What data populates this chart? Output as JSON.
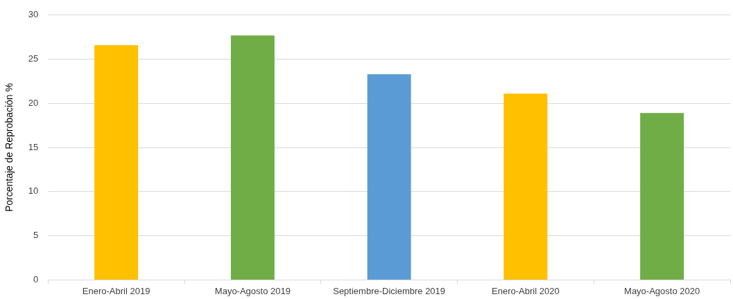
{
  "chart_data": {
    "type": "bar",
    "ylabel": "Porcentaje de Reprobación %",
    "categories": [
      "Enero-Abril 2019",
      "Mayo-Agosto 2019",
      "Septiembre-Diciembre 2019",
      "Enero-Abril 2020",
      "Mayo-Agosto 2020"
    ],
    "values": [
      26.6,
      27.7,
      23.3,
      21.1,
      18.9
    ],
    "colors": [
      "#ffc000",
      "#70ad47",
      "#5b9bd5",
      "#ffc000",
      "#70ad47"
    ],
    "ylim": [
      0,
      30
    ],
    "yticks": [
      0,
      5,
      10,
      15,
      20,
      25,
      30
    ],
    "grid": "y",
    "legend": false
  }
}
